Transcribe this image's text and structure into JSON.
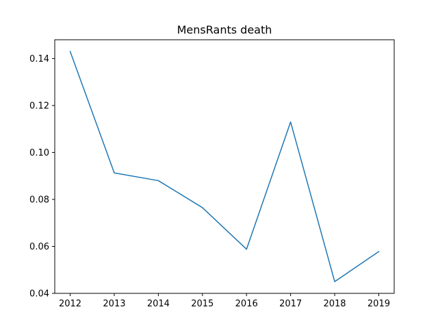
{
  "chart_data": {
    "type": "line",
    "title": "MensRants death",
    "xlabel": "",
    "ylabel": "",
    "x": [
      2012,
      2013,
      2014,
      2015,
      2016,
      2017,
      2018,
      2019
    ],
    "series": [
      {
        "values": [
          0.143,
          0.0913,
          0.088,
          0.0765,
          0.0588,
          0.113,
          0.045,
          0.0578
        ],
        "color": "#1f77b4"
      }
    ],
    "xticks": [
      "2012",
      "2013",
      "2014",
      "2015",
      "2016",
      "2017",
      "2018",
      "2019"
    ],
    "yticks": [
      "0.04",
      "0.06",
      "0.08",
      "0.10",
      "0.12",
      "0.14"
    ],
    "xlim": [
      2011.65,
      2019.35
    ],
    "ylim": [
      0.04,
      0.148
    ],
    "grid": false,
    "legend": "none"
  }
}
